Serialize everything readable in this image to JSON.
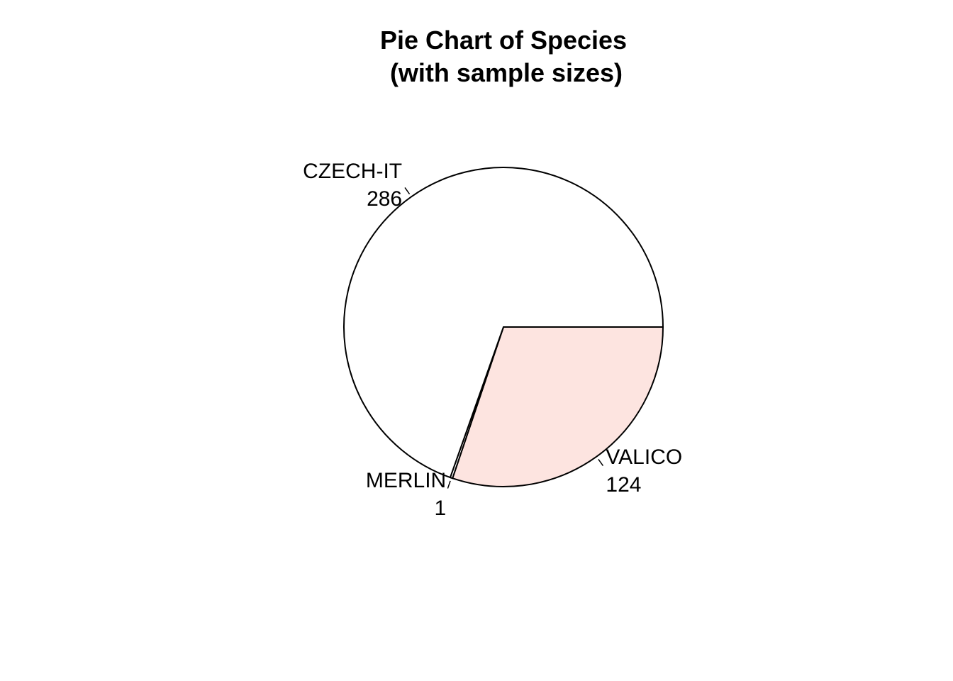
{
  "chart_data": {
    "type": "pie",
    "title": "Pie Chart of Species",
    "subtitle": "(with sample sizes)",
    "categories": [
      "VALICO",
      "MERLIN",
      "CZECH-IT"
    ],
    "values": [
      124,
      1,
      286
    ],
    "labels": [
      {
        "name": "VALICO",
        "count": "124"
      },
      {
        "name": "MERLIN",
        "count": "1"
      },
      {
        "name": "CZECH-IT",
        "count": "286"
      }
    ],
    "colors": [
      "#FDE4E0",
      "#FFFFFF",
      "#FFFFFF"
    ],
    "start_angle_deg": 0,
    "direction": "clockwise"
  }
}
